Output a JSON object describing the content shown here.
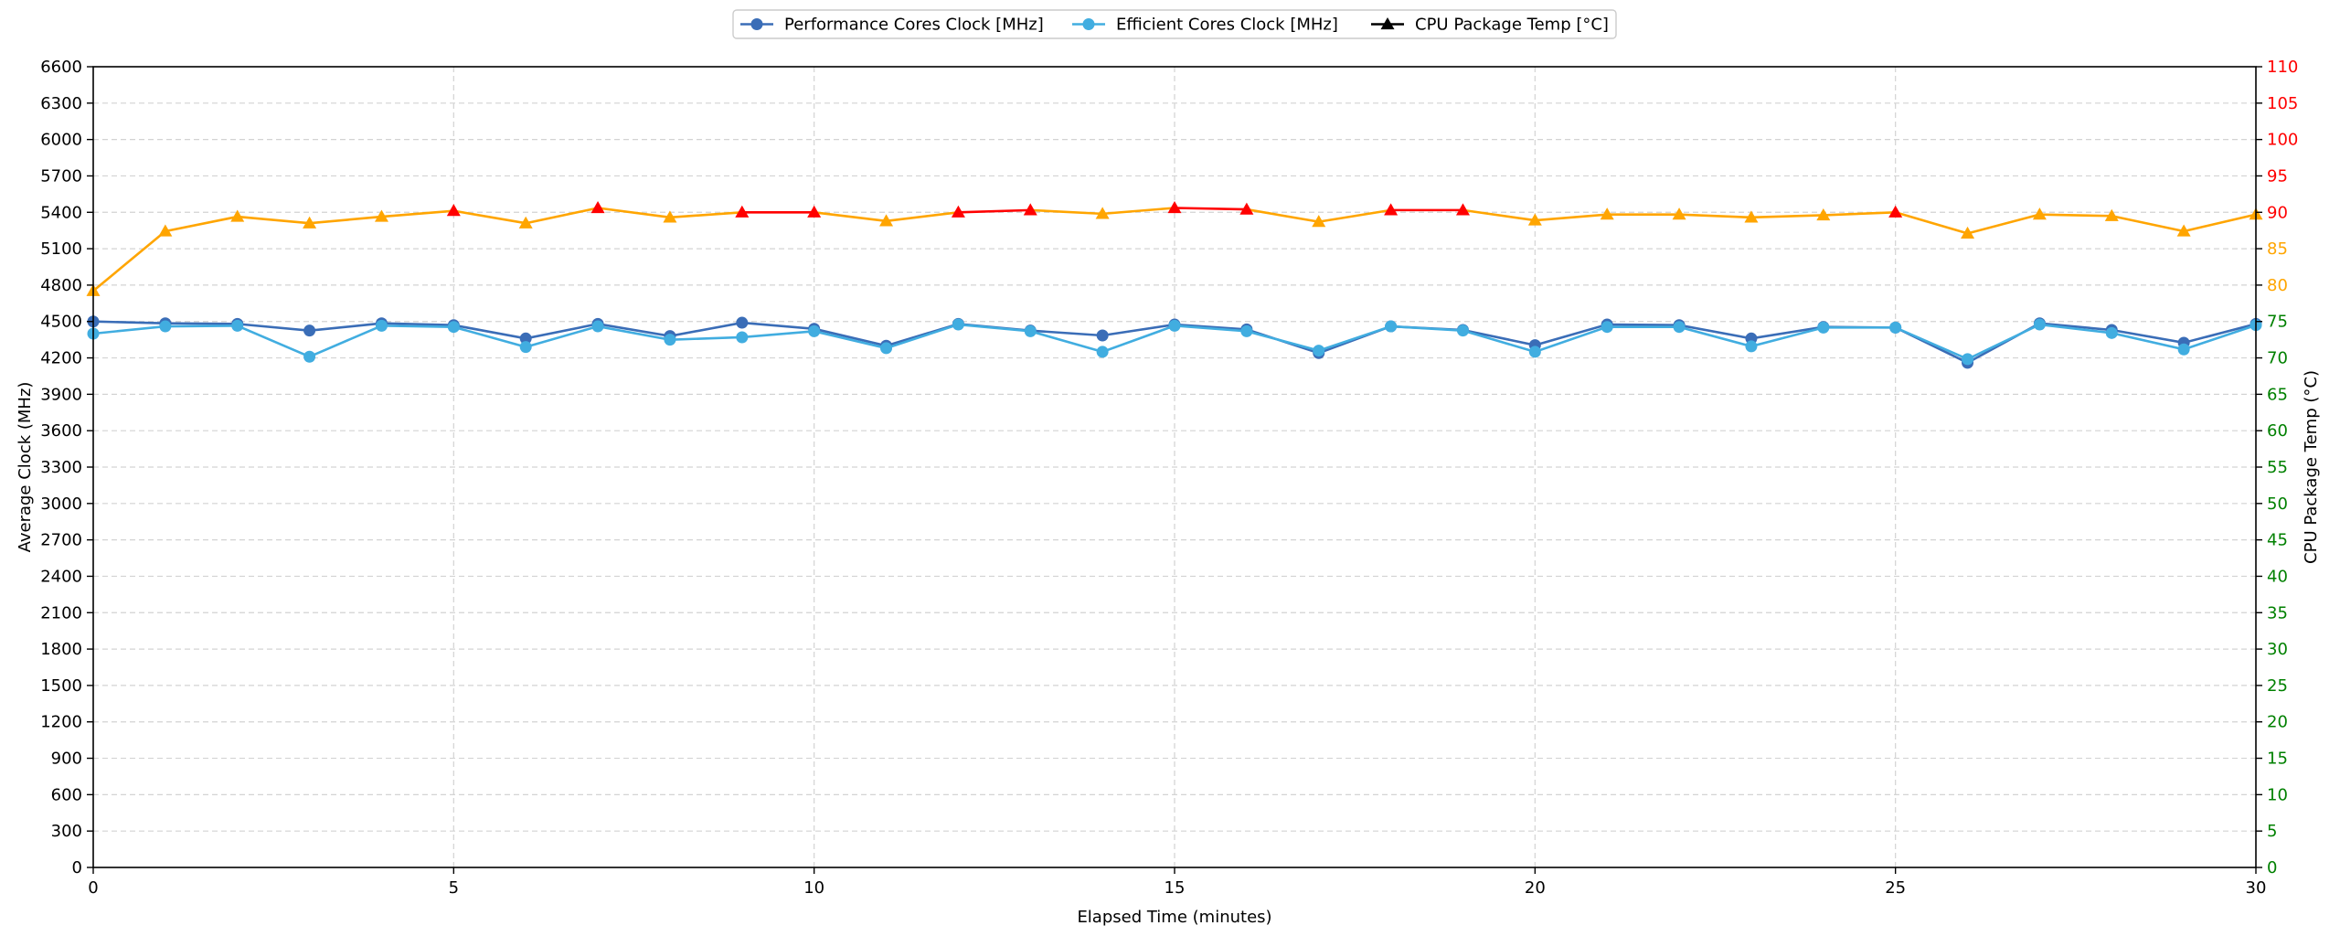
{
  "chart_data": {
    "type": "line",
    "xlabel": "Elapsed Time (minutes)",
    "ylabel_left": "Average Clock (MHz)",
    "ylabel_right": "CPU Package Temp (°C)",
    "xlim": [
      0,
      30
    ],
    "ylim_left": [
      0,
      6600
    ],
    "ylim_right": [
      0,
      110
    ],
    "x_ticks": [
      0,
      5,
      10,
      15,
      20,
      25,
      30
    ],
    "y_left_ticks": [
      0,
      300,
      600,
      900,
      1200,
      1500,
      1800,
      2100,
      2400,
      2700,
      3000,
      3300,
      3600,
      3900,
      4200,
      4500,
      4800,
      5100,
      5400,
      5700,
      6000,
      6300,
      6600
    ],
    "y_right_ticks": [
      0,
      5,
      10,
      15,
      20,
      25,
      30,
      35,
      40,
      45,
      50,
      55,
      60,
      65,
      70,
      75,
      80,
      85,
      90,
      95,
      100,
      105,
      110
    ],
    "grid": true,
    "legend_placement": "top-center",
    "x": [
      0,
      1,
      2,
      3,
      4,
      5,
      6,
      7,
      8,
      9,
      10,
      11,
      12,
      13,
      14,
      15,
      16,
      17,
      18,
      19,
      20,
      21,
      22,
      23,
      24,
      25,
      26,
      27,
      28,
      29,
      30
    ],
    "series": [
      {
        "name": "Performance Cores Clock [MHz]",
        "axis": "left",
        "marker": "circle",
        "color": "#3a6db7",
        "values": [
          4500,
          4485,
          4480,
          4425,
          4485,
          4470,
          4360,
          4480,
          4380,
          4490,
          4440,
          4300,
          4480,
          4425,
          4385,
          4475,
          4435,
          4240,
          4460,
          4430,
          4305,
          4475,
          4470,
          4360,
          4455,
          4450,
          4160,
          4485,
          4430,
          4325,
          4480
        ]
      },
      {
        "name": "Efficient Cores Clock [MHz]",
        "axis": "left",
        "marker": "circle",
        "color": "#41ade0",
        "values": [
          4400,
          4460,
          4465,
          4210,
          4465,
          4455,
          4290,
          4460,
          4350,
          4370,
          4420,
          4280,
          4475,
          4420,
          4250,
          4465,
          4420,
          4260,
          4460,
          4425,
          4250,
          4455,
          4455,
          4295,
          4450,
          4450,
          4190,
          4475,
          4405,
          4270,
          4470
        ]
      },
      {
        "name": "CPU Package Temp [°C]",
        "axis": "right",
        "marker": "triangle",
        "color": "#000000",
        "segment_colors": {
          "normal": "#ffa500",
          "hot": "#ff0000"
        },
        "hot_threshold": 90,
        "values": [
          79.2,
          87.4,
          89.4,
          88.5,
          89.4,
          90.2,
          88.5,
          90.6,
          89.3,
          90.0,
          90.0,
          88.8,
          90.0,
          90.3,
          89.8,
          90.6,
          90.4,
          88.7,
          90.3,
          90.3,
          88.9,
          89.7,
          89.7,
          89.3,
          89.6,
          90.0,
          87.1,
          89.7,
          89.5,
          87.4,
          89.7
        ]
      }
    ],
    "right_axis_label_colors": {
      "low": "#008000",
      "mid": "#ffa500",
      "high": "#ff0000"
    },
    "right_axis_color_thresholds": [
      80,
      90
    ]
  }
}
